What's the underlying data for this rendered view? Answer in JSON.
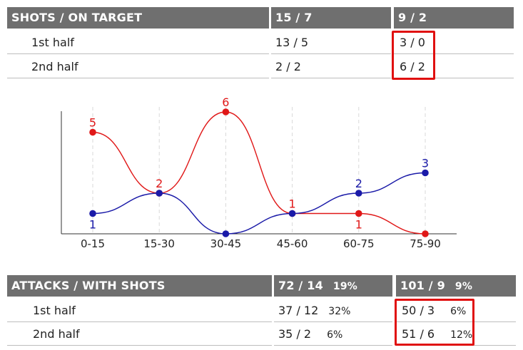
{
  "shots": {
    "header": "SHOTS / ON TARGET",
    "team_a_total": "15 / 7",
    "team_b_total": "9 / 2",
    "rows": [
      {
        "label": "1st half",
        "team_a": "13 / 5",
        "team_b": "3 / 0"
      },
      {
        "label": "2nd half",
        "team_a": "2 / 2",
        "team_b": "6 / 2"
      }
    ]
  },
  "attacks": {
    "header": "ATTACKS / WITH SHOTS",
    "team_a_total": "72 / 14",
    "team_a_pct": "19%",
    "team_b_total": "101 / 9",
    "team_b_pct": "9%",
    "rows": [
      {
        "label": "1st half",
        "team_a": "37 / 12",
        "team_a_pct": "32%",
        "team_b": "50 / 3",
        "team_b_pct": "6%"
      },
      {
        "label": "2nd half",
        "team_a": "35 / 2",
        "team_a_pct": "6%",
        "team_b": "51 / 6",
        "team_b_pct": "12%"
      }
    ]
  },
  "chart_data": {
    "type": "line",
    "categories": [
      "0-15",
      "15-30",
      "30-45",
      "45-60",
      "60-75",
      "75-90"
    ],
    "series": [
      {
        "values": [
          5,
          2,
          6,
          1,
          1,
          0
        ],
        "color": "#e01818",
        "labels": [
          "5",
          "2",
          "6",
          "1",
          "1",
          ""
        ]
      },
      {
        "values": [
          1,
          2,
          0,
          1,
          2,
          3
        ],
        "color": "#1a1aa8",
        "labels": [
          "1",
          "",
          "",
          "",
          "2",
          "3"
        ]
      }
    ],
    "ylim": [
      0,
      6
    ],
    "grid": "vertical-dashed",
    "highlight_color": "#e01010"
  }
}
